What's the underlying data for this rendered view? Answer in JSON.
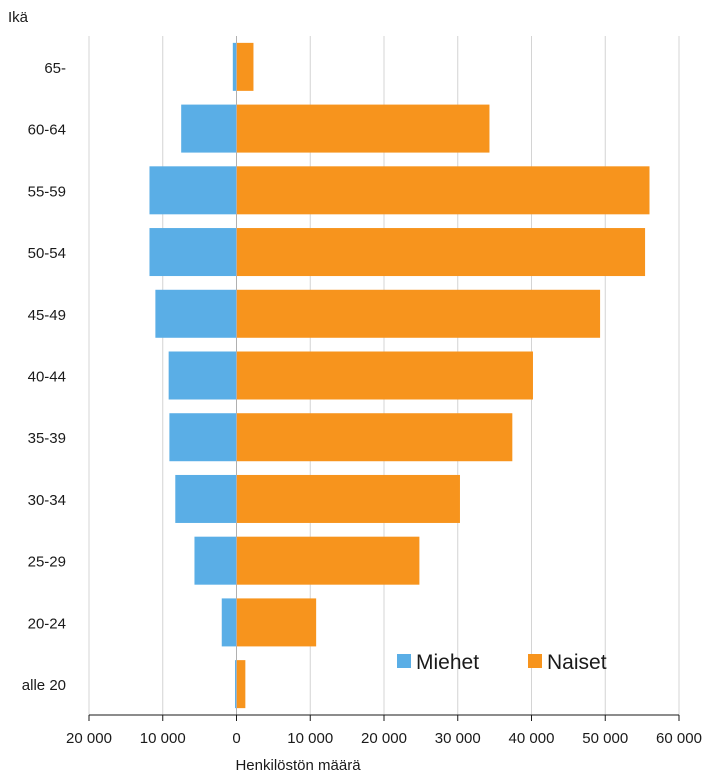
{
  "chart_data": {
    "type": "bar",
    "orientation": "horizontal",
    "layout": "population-pyramid",
    "ylabel": "Ikä",
    "xlabel": "Henkilöstön määrä",
    "categories": [
      "65-",
      "60-64",
      "55-59",
      "50-54",
      "45-49",
      "40-44",
      "35-39",
      "30-34",
      "25-29",
      "20-24",
      "alle 20"
    ],
    "series": [
      {
        "name": "Miehet",
        "color": "#5AAEE6",
        "direction": "left",
        "values": [
          500,
          7500,
          11800,
          11800,
          11000,
          9200,
          9100,
          8300,
          5700,
          2000,
          200
        ]
      },
      {
        "name": "Naiset",
        "color": "#F7941D",
        "direction": "right",
        "values": [
          2300,
          34300,
          56000,
          55400,
          49300,
          40200,
          37400,
          30300,
          24800,
          10800,
          1200
        ]
      }
    ],
    "xlim": [
      -20000,
      60000
    ],
    "x_ticks": [
      -20000,
      -10000,
      0,
      10000,
      20000,
      30000,
      40000,
      50000,
      60000
    ],
    "x_tick_labels": [
      "20 000",
      "10 000",
      "0",
      "10 000",
      "20 000",
      "30 000",
      "40 000",
      "50 000",
      "60 000"
    ],
    "grid": "vertical",
    "legend": "bottom-right"
  }
}
